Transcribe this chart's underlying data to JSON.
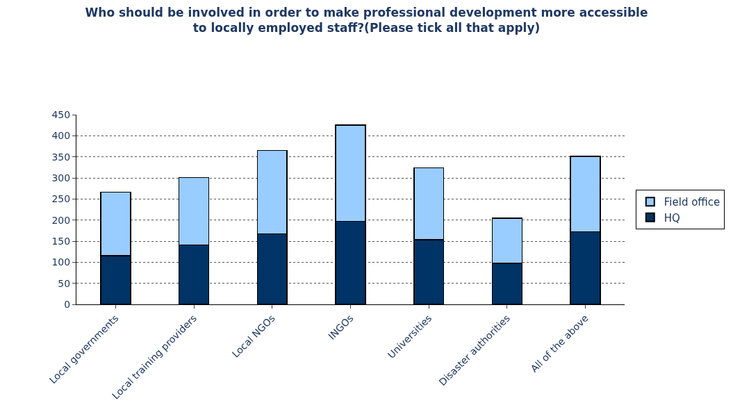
{
  "chart_data": {
    "type": "bar",
    "stacked": true,
    "title": "Who should be involved in order to make professional development more accessible to locally employed staff?(Please tick all that apply)",
    "categories": [
      "Local governments",
      "Local training providers",
      "Local NGOs",
      "INGOs",
      "Universities",
      "Disaster authorities",
      "All of the above"
    ],
    "series": [
      {
        "name": "HQ",
        "color": "#003366",
        "values": [
          115,
          141,
          167,
          197,
          153,
          97,
          172
        ]
      },
      {
        "name": "Field office",
        "color": "#99ccff",
        "values": [
          151,
          160,
          198,
          228,
          171,
          107,
          179
        ]
      }
    ],
    "ylim": [
      0,
      450
    ],
    "yticks": [
      0,
      50,
      100,
      150,
      200,
      250,
      300,
      350,
      400,
      450
    ],
    "grid": "y",
    "legend": "right"
  }
}
